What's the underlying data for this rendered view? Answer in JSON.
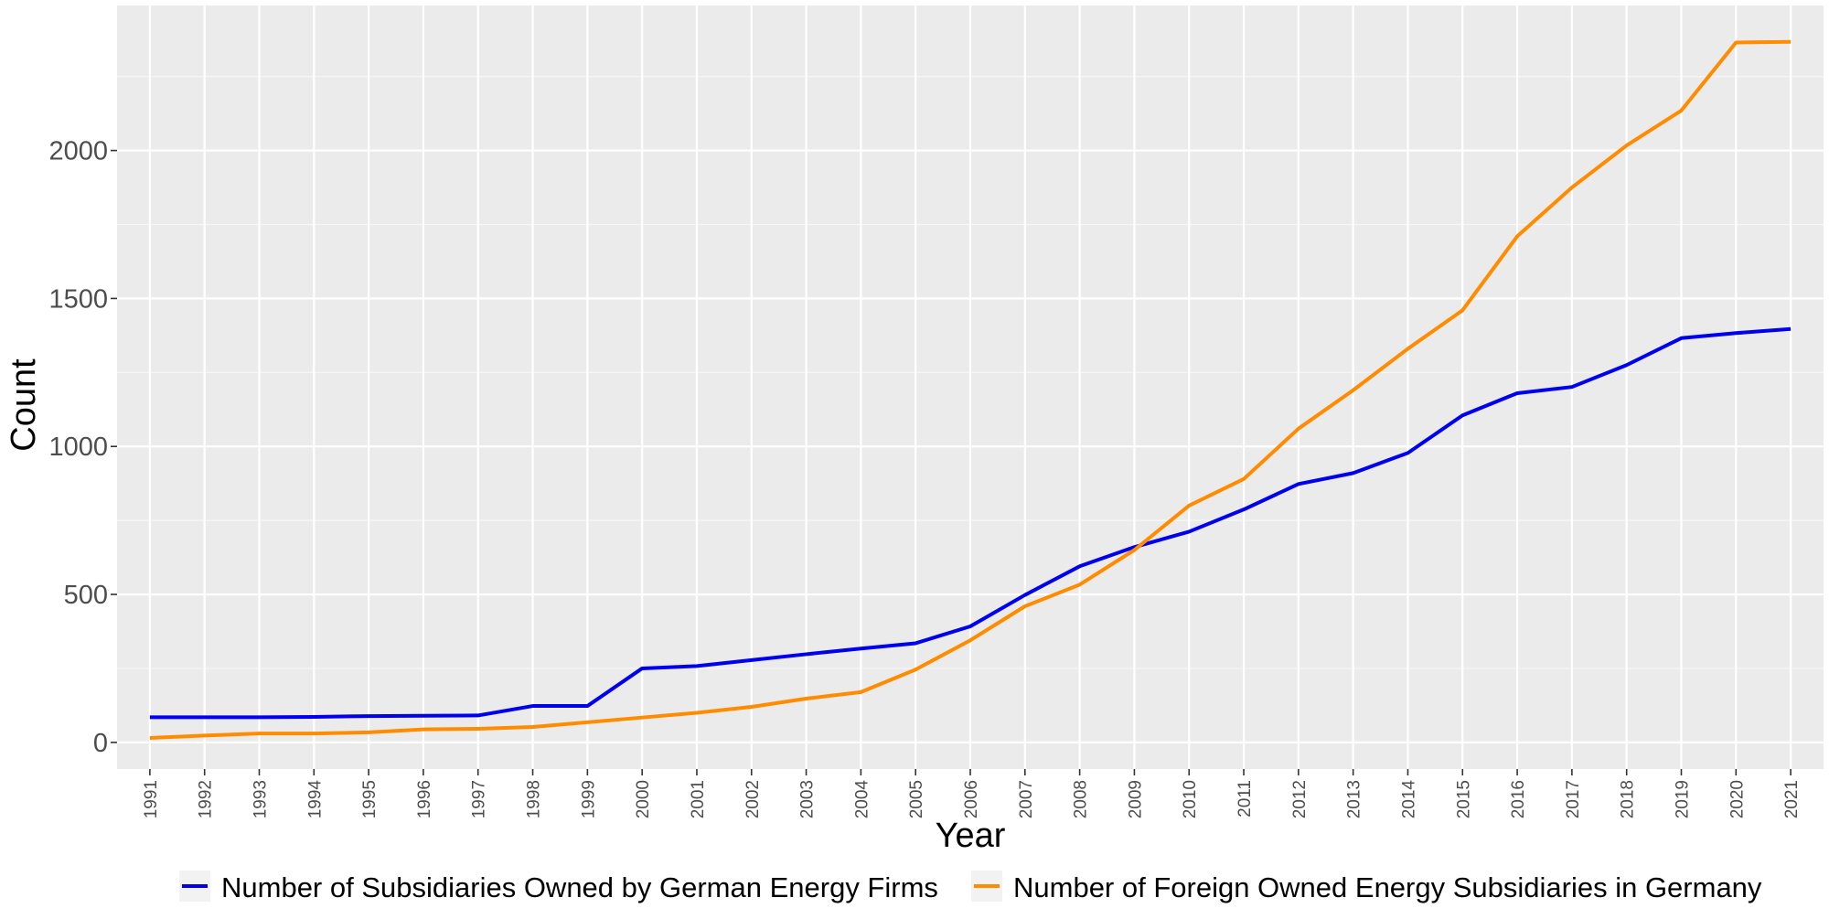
{
  "chart_data": {
    "type": "line",
    "xlabel": "Year",
    "ylabel": "Count",
    "xlim": [
      1990.4,
      2021.6
    ],
    "ylim": [
      -90,
      2490
    ],
    "y_ticks": [
      0,
      500,
      1000,
      1500,
      2000
    ],
    "y_tick_labels": [
      "0",
      "500",
      "1000",
      "1500",
      "2000"
    ],
    "x_ticks": [
      1991,
      1992,
      1993,
      1994,
      1995,
      1996,
      1997,
      1998,
      1999,
      2000,
      2001,
      2002,
      2003,
      2004,
      2005,
      2006,
      2007,
      2008,
      2009,
      2010,
      2011,
      2012,
      2013,
      2014,
      2015,
      2016,
      2017,
      2018,
      2019,
      2020,
      2021
    ],
    "x_tick_labels": [
      "1991",
      "1992",
      "1993",
      "1994",
      "1995",
      "1996",
      "1997",
      "1998",
      "1999",
      "2000",
      "2001",
      "2002",
      "2003",
      "2004",
      "2005",
      "2006",
      "2007",
      "2008",
      "2009",
      "2010",
      "2011",
      "2012",
      "2013",
      "2014",
      "2015",
      "2016",
      "2017",
      "2018",
      "2019",
      "2020",
      "2021"
    ],
    "x_tick_rotation": -90,
    "grid": true,
    "legend_position": "bottom",
    "panel_background": "#ebebeb",
    "series": [
      {
        "name": "Number of Subsidiaries Owned by German Energy Firms",
        "color": "#0000ee",
        "x": [
          1991,
          1992,
          1993,
          1994,
          1995,
          1996,
          1997,
          1998,
          1999,
          2000,
          2001,
          2002,
          2003,
          2004,
          2005,
          2006,
          2007,
          2008,
          2009,
          2010,
          2011,
          2012,
          2013,
          2014,
          2015,
          2016,
          2017,
          2018,
          2019,
          2020,
          2021
        ],
        "values": [
          85,
          85,
          85,
          86,
          89,
          90,
          91,
          123,
          123,
          250,
          258,
          278,
          298,
          317,
          335,
          392,
          498,
          595,
          660,
          712,
          787,
          873,
          910,
          978,
          1105,
          1180,
          1201,
          1275,
          1366,
          1383,
          1397
        ]
      },
      {
        "name": "Number of Foreign Owned Energy Subsidiaries in Germany",
        "color": "#ff8c00",
        "x": [
          1991,
          1992,
          1993,
          1994,
          1995,
          1996,
          1997,
          1998,
          1999,
          2000,
          2001,
          2002,
          2003,
          2004,
          2005,
          2006,
          2007,
          2008,
          2009,
          2010,
          2011,
          2012,
          2013,
          2014,
          2015,
          2016,
          2017,
          2018,
          2019,
          2020,
          2021
        ],
        "values": [
          15,
          23,
          30,
          30,
          34,
          44,
          46,
          52,
          68,
          84,
          100,
          120,
          148,
          170,
          246,
          345,
          460,
          533,
          650,
          800,
          890,
          1060,
          1190,
          1330,
          1460,
          1710,
          1875,
          2017,
          2135,
          2365,
          2367
        ]
      }
    ]
  }
}
